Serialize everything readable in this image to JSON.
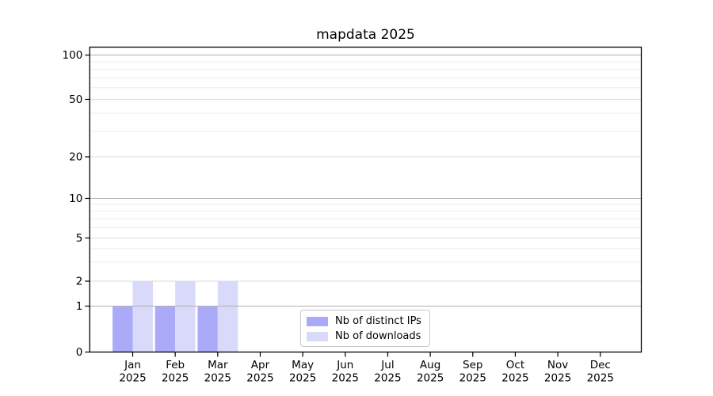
{
  "chart_data": {
    "type": "bar",
    "title": "mapdata 2025",
    "categories": [
      "Jan",
      "Feb",
      "Mar",
      "Apr",
      "May",
      "Jun",
      "Jul",
      "Aug",
      "Sep",
      "Oct",
      "Nov",
      "Dec"
    ],
    "category_year": "2025",
    "series": [
      {
        "name": "Nb of distinct IPs",
        "color": "#abaaf8",
        "values": [
          1,
          1,
          1,
          0,
          0,
          0,
          0,
          0,
          0,
          0,
          0,
          0
        ]
      },
      {
        "name": "Nb of downloads",
        "color": "#d9d9f9",
        "values": [
          2,
          2,
          2,
          0,
          0,
          0,
          0,
          0,
          0,
          0,
          0,
          0
        ]
      }
    ],
    "y_axis": {
      "scale": "symlog",
      "range": [
        0,
        110
      ],
      "major_ticks": [
        0,
        1,
        2,
        5,
        10,
        20,
        50,
        100
      ],
      "minor_gridlines": [
        3,
        4,
        6,
        7,
        8,
        9,
        30,
        40,
        60,
        70,
        80,
        90
      ],
      "decade_lines": [
        1,
        10,
        100
      ]
    },
    "x_axis": {
      "tick_count": 12,
      "label_line2": "2025"
    },
    "legend": {
      "position": "inside-bottom-center",
      "bordered": true
    },
    "grid": "horizontal-only"
  }
}
